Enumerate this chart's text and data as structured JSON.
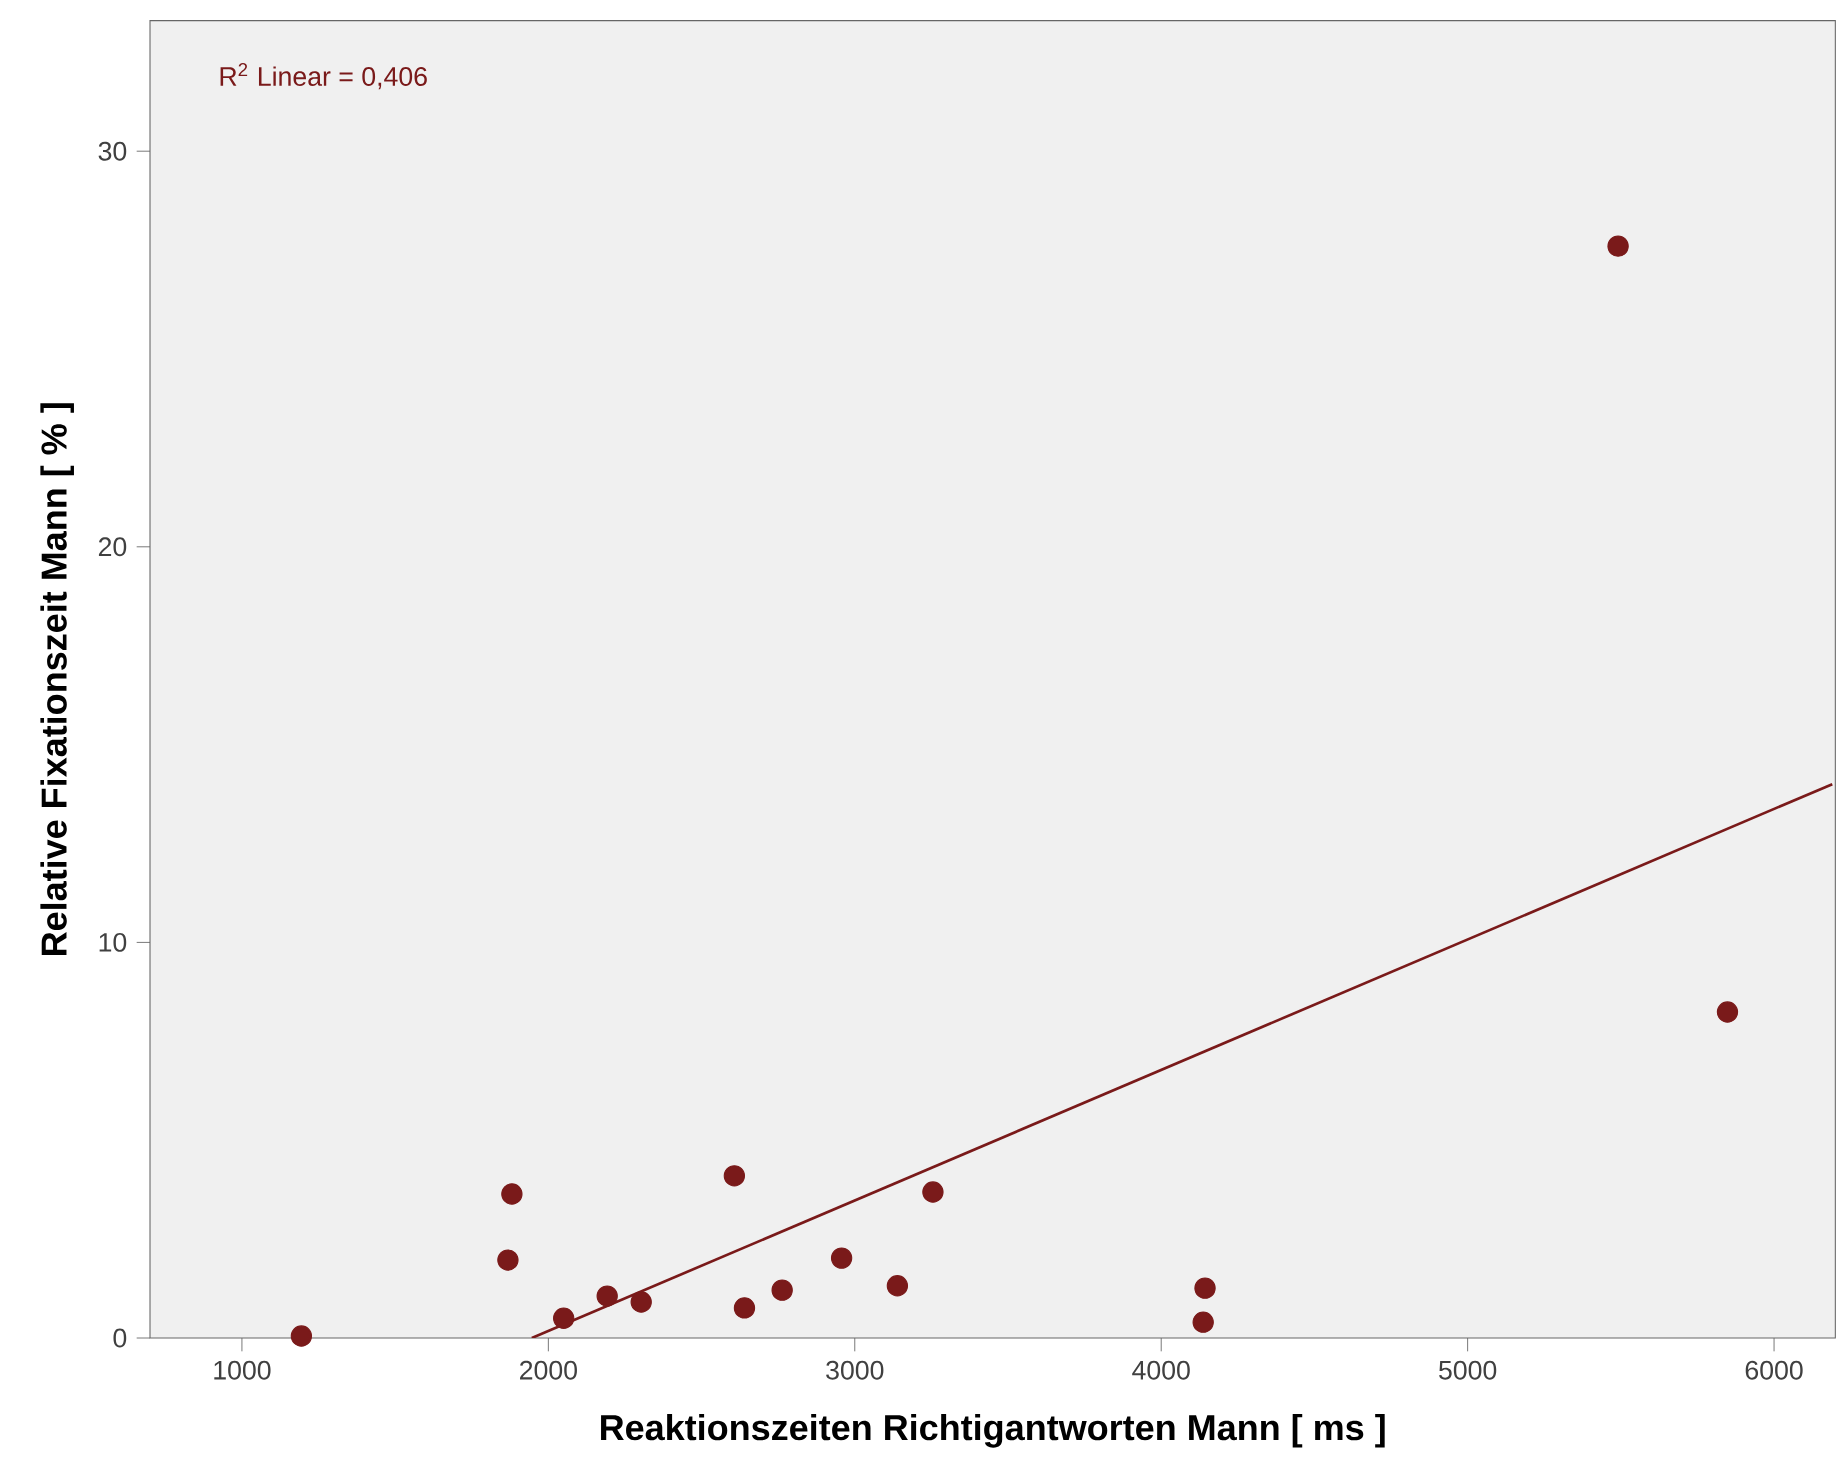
{
  "chart_data": {
    "type": "scatter",
    "xlabel": "Reaktionszeiten Richtigantworten Mann [ ms ]",
    "ylabel": "Relative Fixationszeit Mann [ % ]",
    "annotations": [
      "R$^{2}$ Linear = 0,406"
    ],
    "xlim": [
      700,
      6200
    ],
    "ylim": [
      0,
      33.3
    ],
    "xticks": [
      1000,
      2000,
      3000,
      4000,
      5000,
      6000
    ],
    "yticks": [
      0,
      10,
      20,
      30
    ],
    "grid": false,
    "series": [
      {
        "marker": "circle",
        "color": "#7a1a1a",
        "x": [
          1194,
          1881,
          1868,
          2192,
          2050,
          2303,
          2607,
          2640,
          2763,
          2957,
          3139,
          3255,
          4143,
          4137,
          5491,
          5848
        ],
        "values": [
          0.05,
          3.64,
          1.97,
          1.06,
          0.5,
          0.91,
          4.1,
          0.76,
          1.21,
          2.02,
          1.32,
          3.69,
          1.26,
          0.4,
          27.6,
          8.24
        ]
      },
      {
        "type": "line",
        "marker": "none",
        "color": "#7a1a1a",
        "x": [
          1946,
          6190
        ],
        "values": [
          0,
          14.0
        ]
      }
    ]
  }
}
